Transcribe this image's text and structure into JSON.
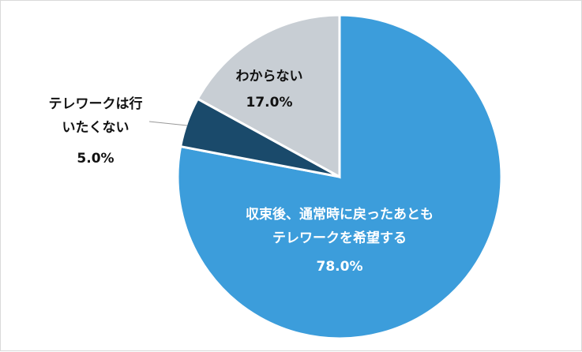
{
  "chart_data": {
    "type": "pie",
    "slices": [
      {
        "label_lines": [
          "収束後、通常時に戻ったあとも",
          "テレワークを希望する"
        ],
        "value": 78.0,
        "value_label": "78.0%",
        "color": "#3c9ddb",
        "text_color": "#ffffff"
      },
      {
        "label_lines": [
          "テレワークは行",
          "いたくない"
        ],
        "value": 5.0,
        "value_label": "5.0%",
        "color": "#1a4a6b",
        "text_color": "#111111"
      },
      {
        "label_lines": [
          "わからない"
        ],
        "value": 17.0,
        "value_label": "17.0%",
        "color": "#c8ced4",
        "text_color": "#111111"
      }
    ],
    "start_angle": "12 o'clock",
    "direction": "clockwise",
    "legend": "none"
  }
}
